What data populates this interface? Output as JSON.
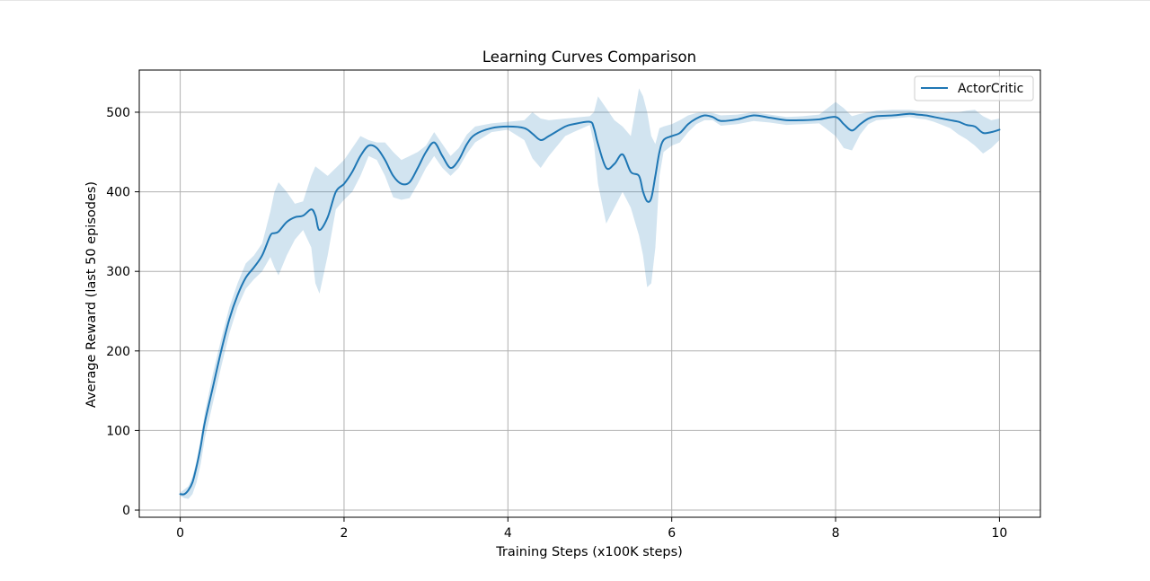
{
  "chart_data": {
    "type": "line",
    "title": "Learning Curves Comparison",
    "xlabel": "Training Steps (x100K steps)",
    "ylabel": "Average Reward (last 50 episodes)",
    "xlim": [
      -0.5,
      10.5
    ],
    "ylim": [
      -9,
      553
    ],
    "xticks": [
      0,
      2,
      4,
      6,
      8,
      10
    ],
    "yticks": [
      0,
      100,
      200,
      300,
      400,
      500
    ],
    "grid": true,
    "legend_position": "top-right",
    "series": [
      {
        "name": "ActorCritic",
        "color": "#1f77b4",
        "band_color": "#1f77b4",
        "band_opacity": 0.2,
        "x": [
          0,
          0.05,
          0.1,
          0.15,
          0.2,
          0.25,
          0.3,
          0.4,
          0.5,
          0.6,
          0.7,
          0.8,
          0.9,
          1.0,
          1.1,
          1.15,
          1.2,
          1.3,
          1.4,
          1.5,
          1.6,
          1.65,
          1.7,
          1.8,
          1.9,
          2.0,
          2.1,
          2.2,
          2.3,
          2.4,
          2.5,
          2.6,
          2.7,
          2.8,
          2.9,
          3.0,
          3.1,
          3.2,
          3.3,
          3.4,
          3.5,
          3.6,
          3.8,
          4.0,
          4.2,
          4.3,
          4.4,
          4.5,
          4.7,
          4.8,
          5.0,
          5.05,
          5.1,
          5.2,
          5.3,
          5.4,
          5.5,
          5.6,
          5.65,
          5.7,
          5.75,
          5.8,
          5.85,
          5.9,
          6.0,
          6.1,
          6.2,
          6.3,
          6.4,
          6.5,
          6.6,
          6.8,
          7.0,
          7.2,
          7.4,
          7.6,
          7.8,
          8.0,
          8.1,
          8.2,
          8.3,
          8.4,
          8.5,
          8.7,
          8.9,
          9.0,
          9.1,
          9.2,
          9.3,
          9.4,
          9.5,
          9.6,
          9.7,
          9.8,
          9.9,
          10.0
        ],
        "values": [
          20,
          20,
          25,
          35,
          55,
          80,
          110,
          155,
          200,
          240,
          270,
          292,
          305,
          320,
          345,
          348,
          350,
          362,
          368,
          370,
          378,
          370,
          352,
          368,
          400,
          410,
          425,
          445,
          458,
          455,
          440,
          420,
          410,
          412,
          430,
          450,
          462,
          445,
          430,
          440,
          460,
          472,
          480,
          482,
          480,
          473,
          465,
          470,
          482,
          485,
          488,
          480,
          460,
          430,
          435,
          447,
          425,
          420,
          400,
          388,
          392,
          420,
          450,
          465,
          470,
          474,
          485,
          492,
          496,
          494,
          489,
          491,
          496,
          493,
          490,
          490,
          491,
          494,
          485,
          477,
          485,
          492,
          495,
          496,
          498,
          497,
          496,
          494,
          492,
          490,
          488,
          484,
          482,
          474,
          475,
          478
        ],
        "upper": [
          22,
          26,
          30,
          42,
          62,
          90,
          122,
          172,
          215,
          255,
          285,
          310,
          320,
          335,
          375,
          400,
          412,
          400,
          385,
          388,
          420,
          432,
          428,
          420,
          430,
          440,
          455,
          470,
          465,
          462,
          462,
          450,
          440,
          445,
          450,
          458,
          475,
          460,
          445,
          455,
          472,
          482,
          486,
          488,
          490,
          500,
          492,
          490,
          492,
          493,
          495,
          500,
          520,
          505,
          490,
          482,
          470,
          530,
          520,
          500,
          470,
          460,
          480,
          482,
          485,
          490,
          496,
          499,
          500,
          499,
          496,
          497,
          500,
          497,
          494,
          495,
          497,
          513,
          505,
          495,
          498,
          500,
          502,
          503,
          503,
          502,
          501,
          500,
          499,
          500,
          500,
          502,
          503,
          495,
          490,
          492
        ],
        "lower": [
          18,
          15,
          14,
          20,
          35,
          58,
          90,
          135,
          180,
          222,
          255,
          278,
          290,
          300,
          318,
          305,
          295,
          320,
          340,
          352,
          330,
          285,
          272,
          320,
          378,
          390,
          400,
          420,
          445,
          440,
          420,
          393,
          390,
          392,
          410,
          430,
          445,
          430,
          420,
          430,
          448,
          462,
          475,
          478,
          465,
          442,
          430,
          445,
          470,
          475,
          484,
          460,
          410,
          360,
          380,
          400,
          380,
          345,
          320,
          280,
          285,
          330,
          420,
          450,
          458,
          462,
          475,
          485,
          490,
          490,
          483,
          485,
          489,
          487,
          484,
          485,
          486,
          470,
          455,
          452,
          472,
          485,
          490,
          492,
          494,
          492,
          491,
          488,
          484,
          480,
          472,
          466,
          458,
          448,
          455,
          465
        ]
      }
    ]
  }
}
